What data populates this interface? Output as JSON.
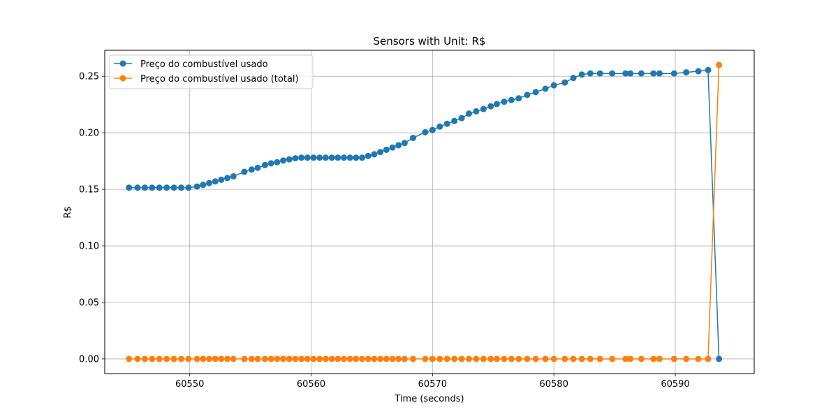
{
  "chart_data": {
    "type": "line",
    "title": "Sensors with Unit: R$",
    "xlabel": "Time (seconds)",
    "ylabel": "R$",
    "xlim": [
      60543,
      60596.5
    ],
    "ylim": [
      -0.013,
      0.273
    ],
    "x_ticks": [
      60550,
      60560,
      60570,
      60580,
      60590
    ],
    "x_tick_labels": [
      "60550",
      "60560",
      "60570",
      "60580",
      "60590"
    ],
    "y_ticks": [
      0.0,
      0.05,
      0.1,
      0.15,
      0.2,
      0.25
    ],
    "y_tick_labels": [
      "0.00",
      "0.05",
      "0.10",
      "0.15",
      "0.20",
      "0.25"
    ],
    "grid": true,
    "legend_position": "top-left",
    "series": [
      {
        "name": "Preço do combustível usado",
        "color": "#1f77b4",
        "x": [
          60545.0,
          60545.7,
          60546.3,
          60546.9,
          60547.5,
          60548.1,
          60548.7,
          60549.3,
          60549.9,
          60550.6,
          60551.1,
          60551.6,
          60552.1,
          60552.6,
          60553.1,
          60553.6,
          60554.5,
          60555.1,
          60555.6,
          60556.2,
          60556.7,
          60557.2,
          60557.7,
          60558.2,
          60558.7,
          60559.2,
          60559.7,
          60560.2,
          60560.7,
          60561.2,
          60561.7,
          60562.2,
          60562.7,
          60563.2,
          60563.7,
          60564.2,
          60564.7,
          60565.2,
          60565.7,
          60566.2,
          60566.7,
          60567.2,
          60567.7,
          60568.4,
          60569.4,
          60570.0,
          60570.6,
          60571.2,
          60571.8,
          60572.4,
          60573.0,
          60573.6,
          60574.2,
          60574.8,
          60575.3,
          60575.9,
          60576.5,
          60577.1,
          60577.8,
          60578.5,
          60579.3,
          60580.0,
          60580.9,
          60581.6,
          60582.3,
          60583.0,
          60583.8,
          60584.8,
          60585.9,
          60586.3,
          60587.2,
          60588.2,
          60588.7,
          60589.9,
          60590.9,
          60591.9,
          60592.7,
          60593.6
        ],
        "y": [
          0.1515,
          0.1515,
          0.1515,
          0.1515,
          0.1515,
          0.1515,
          0.1515,
          0.1515,
          0.1515,
          0.1525,
          0.154,
          0.1555,
          0.157,
          0.1585,
          0.16,
          0.1615,
          0.1655,
          0.1675,
          0.169,
          0.1715,
          0.173,
          0.174,
          0.1755,
          0.1765,
          0.1775,
          0.178,
          0.178,
          0.178,
          0.178,
          0.178,
          0.178,
          0.178,
          0.178,
          0.178,
          0.178,
          0.178,
          0.1795,
          0.181,
          0.183,
          0.185,
          0.187,
          0.189,
          0.191,
          0.1955,
          0.2005,
          0.2025,
          0.2055,
          0.208,
          0.2105,
          0.213,
          0.217,
          0.219,
          0.221,
          0.2235,
          0.2255,
          0.2275,
          0.229,
          0.2305,
          0.2335,
          0.236,
          0.239,
          0.242,
          0.2445,
          0.2485,
          0.2515,
          0.2525,
          0.2525,
          0.2525,
          0.2525,
          0.2525,
          0.2525,
          0.2525,
          0.2525,
          0.2525,
          0.2535,
          0.2545,
          0.2555,
          0.0
        ]
      },
      {
        "name": "Preço do combustível usado (total)",
        "color": "#ff7f0e",
        "x": [
          60545.0,
          60545.7,
          60546.3,
          60546.9,
          60547.5,
          60548.1,
          60548.7,
          60549.3,
          60549.9,
          60550.6,
          60551.1,
          60551.6,
          60552.1,
          60552.6,
          60553.1,
          60553.6,
          60554.5,
          60555.1,
          60555.6,
          60556.2,
          60556.7,
          60557.2,
          60557.7,
          60558.2,
          60558.7,
          60559.2,
          60559.7,
          60560.2,
          60560.7,
          60561.2,
          60561.7,
          60562.2,
          60562.7,
          60563.2,
          60563.7,
          60564.2,
          60564.7,
          60565.2,
          60565.7,
          60566.2,
          60566.7,
          60567.2,
          60567.7,
          60568.4,
          60569.4,
          60570.0,
          60570.6,
          60571.2,
          60571.8,
          60572.4,
          60573.0,
          60573.6,
          60574.2,
          60574.8,
          60575.3,
          60575.9,
          60576.5,
          60577.1,
          60577.8,
          60578.5,
          60579.3,
          60580.0,
          60580.9,
          60581.6,
          60582.3,
          60583.0,
          60583.8,
          60584.8,
          60585.9,
          60586.3,
          60587.2,
          60588.2,
          60588.7,
          60589.9,
          60590.9,
          60591.9,
          60592.7,
          60593.6
        ],
        "y": [
          0.0,
          0.0,
          0.0,
          0.0,
          0.0,
          0.0,
          0.0,
          0.0,
          0.0,
          0.0,
          0.0,
          0.0,
          0.0,
          0.0,
          0.0,
          0.0,
          0.0,
          0.0,
          0.0,
          0.0,
          0.0,
          0.0,
          0.0,
          0.0,
          0.0,
          0.0,
          0.0,
          0.0,
          0.0,
          0.0,
          0.0,
          0.0,
          0.0,
          0.0,
          0.0,
          0.0,
          0.0,
          0.0,
          0.0,
          0.0,
          0.0,
          0.0,
          0.0,
          0.0,
          0.0,
          0.0,
          0.0,
          0.0,
          0.0,
          0.0,
          0.0,
          0.0,
          0.0,
          0.0,
          0.0,
          0.0,
          0.0,
          0.0,
          0.0,
          0.0,
          0.0,
          0.0,
          0.0,
          0.0,
          0.0,
          0.0,
          0.0,
          0.0,
          0.0,
          0.0,
          0.0,
          0.0,
          0.0,
          0.0,
          0.0,
          0.0,
          0.0,
          0.26
        ]
      }
    ]
  }
}
